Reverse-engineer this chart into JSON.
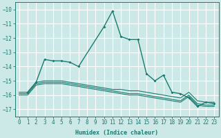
{
  "xlabel": "Humidex (Indice chaleur)",
  "xlim": [
    -0.5,
    23.5
  ],
  "ylim": [
    -17.5,
    -9.5
  ],
  "yticks": [
    -17,
    -16,
    -15,
    -14,
    -13,
    -12,
    -11,
    -10
  ],
  "xticks": [
    0,
    1,
    2,
    3,
    4,
    5,
    6,
    7,
    8,
    9,
    10,
    11,
    12,
    13,
    14,
    15,
    16,
    17,
    18,
    19,
    20,
    21,
    22,
    23
  ],
  "background_color": "#cce9e8",
  "grid_color": "#ffffff",
  "line_color": "#1a7a6e",
  "main_series": [
    null,
    -15.8,
    -15.1,
    -13.5,
    -13.6,
    -13.6,
    -13.7,
    -14.0,
    null,
    null,
    -11.2,
    -10.1,
    -11.9,
    -12.1,
    -12.1,
    -14.5,
    -15.0,
    -14.6,
    -15.8,
    -15.9,
    -16.2,
    -16.8,
    -16.5,
    -16.6
  ],
  "flat_lines": [
    [
      -15.8,
      -15.8,
      -15.1,
      -15.0,
      -15.0,
      -15.0,
      -15.1,
      -15.2,
      -15.3,
      -15.4,
      -15.5,
      -15.6,
      -15.6,
      -15.7,
      -15.7,
      -15.8,
      -15.9,
      -16.0,
      -16.1,
      -16.2,
      -15.8,
      -16.4,
      -16.5,
      -16.5
    ],
    [
      -15.9,
      -15.9,
      -15.2,
      -15.1,
      -15.1,
      -15.1,
      -15.2,
      -15.3,
      -15.4,
      -15.5,
      -15.6,
      -15.7,
      -15.8,
      -15.9,
      -15.9,
      -16.0,
      -16.1,
      -16.2,
      -16.3,
      -16.4,
      -16.0,
      -16.6,
      -16.7,
      -16.7
    ],
    [
      -16.0,
      -16.0,
      -15.3,
      -15.2,
      -15.2,
      -15.2,
      -15.3,
      -15.4,
      -15.5,
      -15.6,
      -15.7,
      -15.8,
      -15.9,
      -16.0,
      -16.0,
      -16.1,
      -16.2,
      -16.3,
      -16.4,
      -16.5,
      -16.1,
      -16.7,
      -16.8,
      -16.8
    ]
  ],
  "xlabel_fontsize": 6.0,
  "tick_fontsize": 5.5
}
